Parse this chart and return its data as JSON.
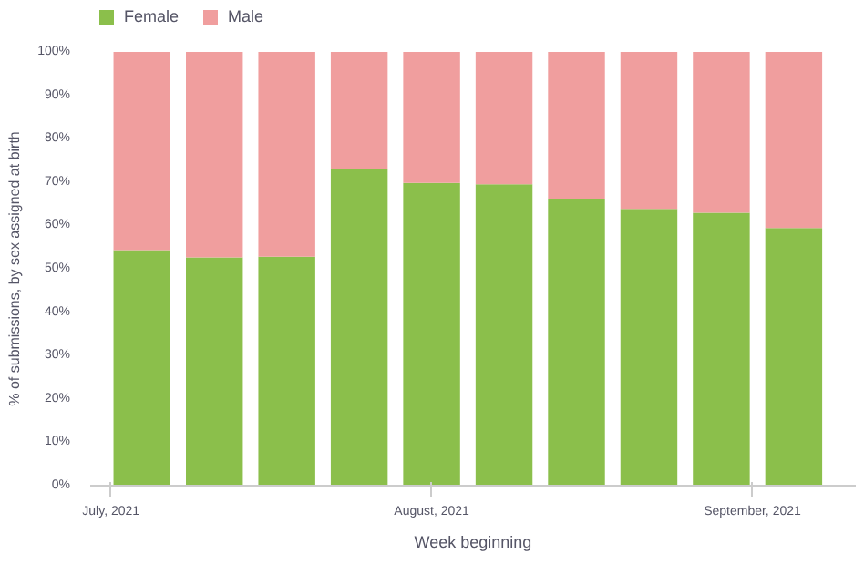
{
  "chart_data": {
    "type": "bar",
    "stacked": true,
    "xlabel": "Week beginning",
    "ylabel": "% of submissions, by sex assigned at birth",
    "x": [
      "2021-07-04",
      "2021-07-11",
      "2021-07-18",
      "2021-07-25",
      "2021-08-01",
      "2021-08-08",
      "2021-08-15",
      "2021-08-22",
      "2021-08-29",
      "2021-09-05"
    ],
    "series": [
      {
        "name": "Female",
        "color": "#8bbf4b",
        "values": [
          54.3,
          52.6,
          52.8,
          73,
          69.8,
          69.5,
          66.2,
          63.8,
          62.9,
          59.4
        ]
      },
      {
        "name": "Male",
        "color": "#f09e9e",
        "values": [
          45.7,
          47.4,
          47.2,
          27,
          30.2,
          30.5,
          33.8,
          36.2,
          37.1,
          40.6
        ]
      }
    ],
    "xlim": [
      "2021-06-29",
      "2021-09-11"
    ],
    "xticks": [
      {
        "value": "2021-07-01",
        "label": "July, 2021"
      },
      {
        "value": "2021-08-01",
        "label": "August, 2021"
      },
      {
        "value": "2021-09-01",
        "label": "September, 2021"
      }
    ],
    "ylim": [
      0,
      100
    ],
    "yticks": [
      {
        "value": 0,
        "label": "0%"
      },
      {
        "value": 10,
        "label": "10%"
      },
      {
        "value": 20,
        "label": "20%"
      },
      {
        "value": 30,
        "label": "30%"
      },
      {
        "value": 40,
        "label": "40%"
      },
      {
        "value": 50,
        "label": "50%"
      },
      {
        "value": 60,
        "label": "60%"
      },
      {
        "value": 70,
        "label": "70%"
      },
      {
        "value": 80,
        "label": "80%"
      },
      {
        "value": 90,
        "label": "90%"
      },
      {
        "value": 100,
        "label": "100%"
      }
    ],
    "grid": false,
    "legend": "top left"
  }
}
